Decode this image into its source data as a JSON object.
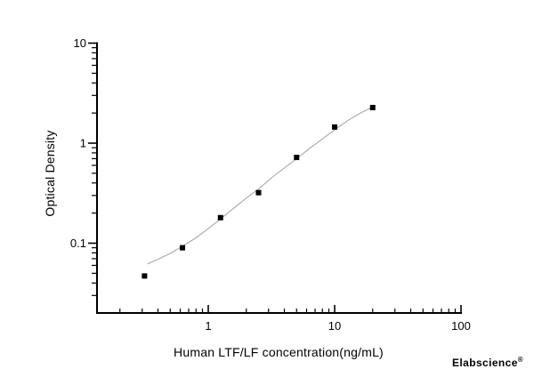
{
  "chart_data": {
    "type": "scatter",
    "title": "",
    "xlabel": "Human LTF/LF concentration(ng/mL)",
    "ylabel": "Optical Density",
    "x_scale": "log",
    "y_scale": "log",
    "xlim": [
      0.13,
      100
    ],
    "ylim": [
      0.02,
      10
    ],
    "grid": false,
    "legend": null,
    "x_ticks": {
      "values": [
        1,
        10,
        100
      ],
      "labels": [
        "1",
        "10",
        "100"
      ]
    },
    "y_ticks": {
      "values": [
        10,
        1,
        0.1
      ],
      "labels": [
        "10",
        "1",
        "0.1"
      ]
    },
    "series": [
      {
        "name": "standard-points",
        "type": "scatter",
        "marker": "filled-square",
        "color": "#000000",
        "x": [
          0.313,
          0.625,
          1.25,
          2.5,
          5,
          10,
          20
        ],
        "y": [
          0.047,
          0.09,
          0.18,
          0.32,
          0.72,
          1.45,
          2.27
        ]
      },
      {
        "name": "fitted-curve",
        "type": "line",
        "color": "#a8a8a8",
        "x": [
          0.33,
          0.4,
          0.5,
          0.625,
          0.8,
          1.0,
          1.25,
          1.6,
          2.0,
          2.5,
          3.2,
          4.0,
          5.0,
          6.3,
          8.0,
          10.0,
          12.5,
          16.0,
          21.0
        ],
        "y": [
          0.062,
          0.069,
          0.079,
          0.093,
          0.113,
          0.14,
          0.175,
          0.225,
          0.282,
          0.348,
          0.455,
          0.565,
          0.7,
          0.88,
          1.1,
          1.36,
          1.66,
          2.0,
          2.36
        ]
      }
    ]
  },
  "watermark": {
    "text": "Elabscience",
    "registered_mark": "®",
    "color": "#f0f0f0"
  },
  "colors": {
    "background": "#ffffff",
    "axis": "#000000",
    "text": "#000000",
    "curve": "#a8a8a8",
    "marker": "#000000",
    "watermark": "#f0f0f0"
  }
}
